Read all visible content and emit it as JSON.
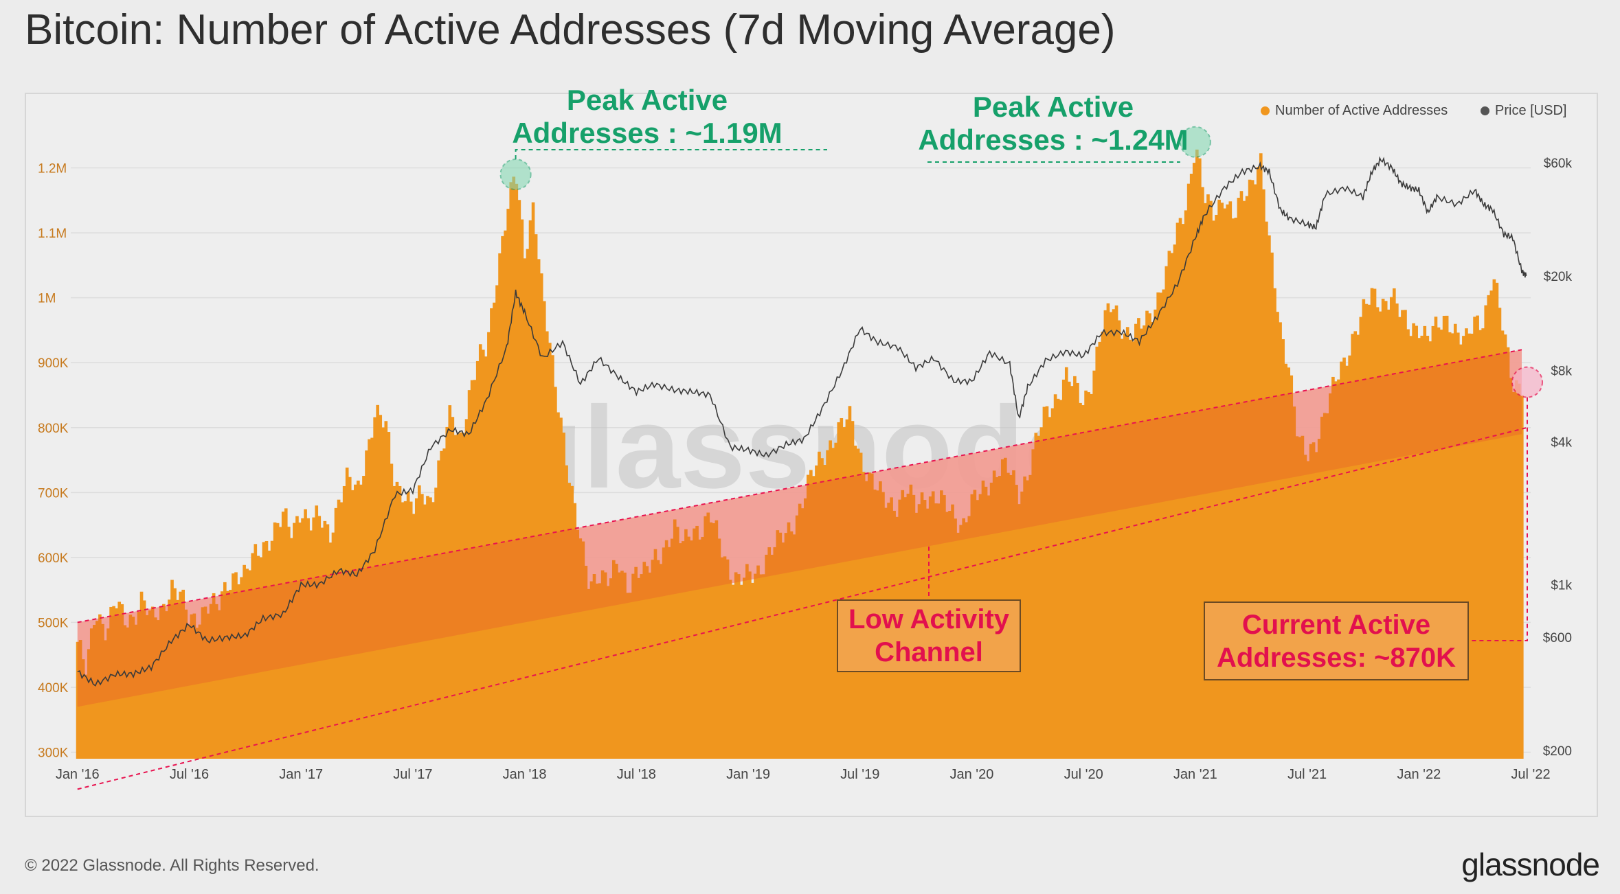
{
  "page": {
    "title": "Bitcoin: Number of Active Addresses (7d Moving Average)",
    "copyright": "© 2022 Glassnode. All Rights Reserved.",
    "brand": "glassnode",
    "watermark": "glassnode"
  },
  "legend": {
    "series1": "Number of Active Addresses",
    "series2": "Price [USD]"
  },
  "annotations": {
    "peak1_line1": "Peak Active",
    "peak1_line2": "Addresses : ~1.19M",
    "peak2_line1": "Peak Active",
    "peak2_line2": "Addresses : ~1.24M",
    "channel_line1": "Low Activity",
    "channel_line2": "Channel",
    "current_line1": "Current Active",
    "current_line2": "Addresses: ~870K"
  },
  "colors": {
    "bars": "#f0961e",
    "channel_fill": "#f7c5d2",
    "channel_line": "#e8124f",
    "price_line": "#3a3a3a",
    "peak_green": "#16a06a"
  },
  "chart_data": {
    "type": "bar",
    "title": "Bitcoin: Number of Active Addresses (7d Moving Average)",
    "x_ticks": [
      "Jan '16",
      "Jul '16",
      "Jan '17",
      "Jul '17",
      "Jan '18",
      "Jul '18",
      "Jan '19",
      "Jul '19",
      "Jan '20",
      "Jul '20",
      "Jan '21",
      "Jul '21",
      "Jan '22",
      "Jul '22"
    ],
    "x_tick_years": [
      2016.0,
      2016.5,
      2017.0,
      2017.5,
      2018.0,
      2018.5,
      2019.0,
      2019.5,
      2020.0,
      2020.5,
      2021.0,
      2021.5,
      2022.0,
      2022.5
    ],
    "xlim": [
      2015.97,
      2022.5
    ],
    "y_left_ticks": [
      "300K",
      "400K",
      "500K",
      "600K",
      "700K",
      "800K",
      "900K",
      "1M",
      "1.1M",
      "1.2M"
    ],
    "y_left_values": [
      300000,
      400000,
      500000,
      600000,
      700000,
      800000,
      900000,
      1000000,
      1100000,
      1200000
    ],
    "ylim_left": [
      290000,
      1300000
    ],
    "y_right_scale": "log",
    "y_right_ticks": [
      "$200",
      "$600",
      "$1k",
      "$4k",
      "$8k",
      "$20k",
      "$60k"
    ],
    "y_right_values": [
      200,
      600,
      1000,
      4000,
      8000,
      20000,
      60000
    ],
    "series": [
      {
        "name": "Number of Active Addresses",
        "axis": "left",
        "points": [
          [
            2016.0,
            470000
          ],
          [
            2016.04,
            420000
          ],
          [
            2016.08,
            520000
          ],
          [
            2016.13,
            490000
          ],
          [
            2016.17,
            530000
          ],
          [
            2016.21,
            500000
          ],
          [
            2016.25,
            510000
          ],
          [
            2016.29,
            540000
          ],
          [
            2016.33,
            500000
          ],
          [
            2016.38,
            520000
          ],
          [
            2016.42,
            560000
          ],
          [
            2016.46,
            540000
          ],
          [
            2016.5,
            500000
          ],
          [
            2016.54,
            510000
          ],
          [
            2016.58,
            530000
          ],
          [
            2016.63,
            520000
          ],
          [
            2016.67,
            560000
          ],
          [
            2016.71,
            580000
          ],
          [
            2016.75,
            570000
          ],
          [
            2016.79,
            600000
          ],
          [
            2016.83,
            620000
          ],
          [
            2016.88,
            640000
          ],
          [
            2016.92,
            660000
          ],
          [
            2016.96,
            640000
          ],
          [
            2017.0,
            680000
          ],
          [
            2017.04,
            650000
          ],
          [
            2017.08,
            660000
          ],
          [
            2017.13,
            640000
          ],
          [
            2017.17,
            690000
          ],
          [
            2017.21,
            720000
          ],
          [
            2017.25,
            700000
          ],
          [
            2017.29,
            760000
          ],
          [
            2017.33,
            820000
          ],
          [
            2017.38,
            800000
          ],
          [
            2017.42,
            720000
          ],
          [
            2017.46,
            700000
          ],
          [
            2017.5,
            670000
          ],
          [
            2017.54,
            700000
          ],
          [
            2017.58,
            690000
          ],
          [
            2017.63,
            760000
          ],
          [
            2017.67,
            820000
          ],
          [
            2017.71,
            780000
          ],
          [
            2017.75,
            850000
          ],
          [
            2017.79,
            900000
          ],
          [
            2017.83,
            920000
          ],
          [
            2017.88,
            1050000
          ],
          [
            2017.92,
            1130000
          ],
          [
            2017.96,
            1190000
          ],
          [
            2018.0,
            1070000
          ],
          [
            2018.04,
            1150000
          ],
          [
            2018.08,
            1000000
          ],
          [
            2018.13,
            880000
          ],
          [
            2018.17,
            800000
          ],
          [
            2018.21,
            700000
          ],
          [
            2018.25,
            620000
          ],
          [
            2018.29,
            560000
          ],
          [
            2018.33,
            580000
          ],
          [
            2018.38,
            560000
          ],
          [
            2018.42,
            590000
          ],
          [
            2018.46,
            560000
          ],
          [
            2018.5,
            580000
          ],
          [
            2018.54,
            570000
          ],
          [
            2018.58,
            600000
          ],
          [
            2018.63,
            620000
          ],
          [
            2018.67,
            640000
          ],
          [
            2018.71,
            620000
          ],
          [
            2018.75,
            650000
          ],
          [
            2018.79,
            640000
          ],
          [
            2018.83,
            660000
          ],
          [
            2018.88,
            620000
          ],
          [
            2018.92,
            580000
          ],
          [
            2018.96,
            560000
          ],
          [
            2019.0,
            570000
          ],
          [
            2019.04,
            580000
          ],
          [
            2019.08,
            600000
          ],
          [
            2019.13,
            620000
          ],
          [
            2019.17,
            640000
          ],
          [
            2019.21,
            660000
          ],
          [
            2019.25,
            690000
          ],
          [
            2019.29,
            730000
          ],
          [
            2019.33,
            760000
          ],
          [
            2019.38,
            780000
          ],
          [
            2019.42,
            800000
          ],
          [
            2019.46,
            820000
          ],
          [
            2019.5,
            760000
          ],
          [
            2019.54,
            720000
          ],
          [
            2019.58,
            700000
          ],
          [
            2019.63,
            690000
          ],
          [
            2019.67,
            680000
          ],
          [
            2019.71,
            700000
          ],
          [
            2019.75,
            680000
          ],
          [
            2019.79,
            700000
          ],
          [
            2019.83,
            690000
          ],
          [
            2019.88,
            680000
          ],
          [
            2019.92,
            670000
          ],
          [
            2019.96,
            650000
          ],
          [
            2020.0,
            680000
          ],
          [
            2020.04,
            700000
          ],
          [
            2020.08,
            720000
          ],
          [
            2020.13,
            740000
          ],
          [
            2020.17,
            730000
          ],
          [
            2020.21,
            700000
          ],
          [
            2020.25,
            730000
          ],
          [
            2020.29,
            780000
          ],
          [
            2020.33,
            820000
          ],
          [
            2020.38,
            850000
          ],
          [
            2020.42,
            880000
          ],
          [
            2020.46,
            860000
          ],
          [
            2020.5,
            840000
          ],
          [
            2020.54,
            880000
          ],
          [
            2020.58,
            950000
          ],
          [
            2020.63,
            990000
          ],
          [
            2020.67,
            960000
          ],
          [
            2020.71,
            940000
          ],
          [
            2020.75,
            950000
          ],
          [
            2020.79,
            970000
          ],
          [
            2020.83,
            1000000
          ],
          [
            2020.88,
            1050000
          ],
          [
            2020.92,
            1100000
          ],
          [
            2020.96,
            1150000
          ],
          [
            2021.0,
            1240000
          ],
          [
            2021.04,
            1150000
          ],
          [
            2021.08,
            1130000
          ],
          [
            2021.13,
            1160000
          ],
          [
            2021.17,
            1120000
          ],
          [
            2021.21,
            1150000
          ],
          [
            2021.25,
            1180000
          ],
          [
            2021.29,
            1220000
          ],
          [
            2021.33,
            1080000
          ],
          [
            2021.38,
            950000
          ],
          [
            2021.42,
            900000
          ],
          [
            2021.46,
            780000
          ],
          [
            2021.5,
            750000
          ],
          [
            2021.54,
            780000
          ],
          [
            2021.58,
            830000
          ],
          [
            2021.63,
            870000
          ],
          [
            2021.67,
            900000
          ],
          [
            2021.71,
            950000
          ],
          [
            2021.75,
            980000
          ],
          [
            2021.79,
            1000000
          ],
          [
            2021.83,
            990000
          ],
          [
            2021.88,
            1010000
          ],
          [
            2021.92,
            970000
          ],
          [
            2021.96,
            950000
          ],
          [
            2022.0,
            960000
          ],
          [
            2022.04,
            940000
          ],
          [
            2022.08,
            950000
          ],
          [
            2022.13,
            970000
          ],
          [
            2022.17,
            950000
          ],
          [
            2022.21,
            930000
          ],
          [
            2022.25,
            960000
          ],
          [
            2022.29,
            970000
          ],
          [
            2022.33,
            1040000
          ],
          [
            2022.38,
            940000
          ],
          [
            2022.42,
            870000
          ],
          [
            2022.46,
            870000
          ]
        ]
      },
      {
        "name": "Price [USD]",
        "axis": "right",
        "points": [
          [
            2016.0,
            430
          ],
          [
            2016.08,
            380
          ],
          [
            2016.17,
            420
          ],
          [
            2016.25,
            420
          ],
          [
            2016.33,
            450
          ],
          [
            2016.42,
            580
          ],
          [
            2016.5,
            680
          ],
          [
            2016.58,
            580
          ],
          [
            2016.67,
            600
          ],
          [
            2016.75,
            610
          ],
          [
            2016.83,
            720
          ],
          [
            2016.92,
            750
          ],
          [
            2017.0,
            1000
          ],
          [
            2017.08,
            1000
          ],
          [
            2017.17,
            1150
          ],
          [
            2017.25,
            1100
          ],
          [
            2017.33,
            1400
          ],
          [
            2017.42,
            2400
          ],
          [
            2017.5,
            2500
          ],
          [
            2017.58,
            3800
          ],
          [
            2017.67,
            4500
          ],
          [
            2017.75,
            4300
          ],
          [
            2017.83,
            6000
          ],
          [
            2017.92,
            10000
          ],
          [
            2017.96,
            17000
          ],
          [
            2018.0,
            14000
          ],
          [
            2018.08,
            9000
          ],
          [
            2018.17,
            10500
          ],
          [
            2018.25,
            7000
          ],
          [
            2018.33,
            9000
          ],
          [
            2018.42,
            7500
          ],
          [
            2018.5,
            6500
          ],
          [
            2018.58,
            7000
          ],
          [
            2018.67,
            6600
          ],
          [
            2018.75,
            6500
          ],
          [
            2018.83,
            6300
          ],
          [
            2018.92,
            3800
          ],
          [
            2019.0,
            3700
          ],
          [
            2019.08,
            3500
          ],
          [
            2019.17,
            3900
          ],
          [
            2019.25,
            4100
          ],
          [
            2019.33,
            5500
          ],
          [
            2019.42,
            8000
          ],
          [
            2019.5,
            12000
          ],
          [
            2019.58,
            10500
          ],
          [
            2019.67,
            10000
          ],
          [
            2019.75,
            8200
          ],
          [
            2019.83,
            9000
          ],
          [
            2019.92,
            7200
          ],
          [
            2020.0,
            7200
          ],
          [
            2020.08,
            9500
          ],
          [
            2020.17,
            8500
          ],
          [
            2020.21,
            5000
          ],
          [
            2020.25,
            6800
          ],
          [
            2020.33,
            8800
          ],
          [
            2020.42,
            9600
          ],
          [
            2020.5,
            9200
          ],
          [
            2020.58,
            11500
          ],
          [
            2020.67,
            11600
          ],
          [
            2020.75,
            10600
          ],
          [
            2020.83,
            13500
          ],
          [
            2020.92,
            18500
          ],
          [
            2021.0,
            29000
          ],
          [
            2021.04,
            36000
          ],
          [
            2021.13,
            47000
          ],
          [
            2021.21,
            55000
          ],
          [
            2021.29,
            58000
          ],
          [
            2021.33,
            55000
          ],
          [
            2021.38,
            38000
          ],
          [
            2021.42,
            35000
          ],
          [
            2021.5,
            33000
          ],
          [
            2021.54,
            32000
          ],
          [
            2021.58,
            44000
          ],
          [
            2021.67,
            47000
          ],
          [
            2021.75,
            43000
          ],
          [
            2021.79,
            55000
          ],
          [
            2021.83,
            62000
          ],
          [
            2021.88,
            57000
          ],
          [
            2021.92,
            49000
          ],
          [
            2021.96,
            47000
          ],
          [
            2022.0,
            46000
          ],
          [
            2022.04,
            37000
          ],
          [
            2022.08,
            43000
          ],
          [
            2022.17,
            40000
          ],
          [
            2022.25,
            46000
          ],
          [
            2022.29,
            40000
          ],
          [
            2022.33,
            38000
          ],
          [
            2022.38,
            30000
          ],
          [
            2022.42,
            29000
          ],
          [
            2022.46,
            21000
          ],
          [
            2022.48,
            20000
          ]
        ]
      }
    ],
    "channel": {
      "label": "Low Activity Channel",
      "upper": [
        [
          2016.0,
          500000
        ],
        [
          2022.46,
          920000
        ]
      ],
      "lower": [
        [
          2016.0,
          370000
        ],
        [
          2022.46,
          790000
        ]
      ]
    },
    "grid": true,
    "legend_position": "top-right"
  }
}
